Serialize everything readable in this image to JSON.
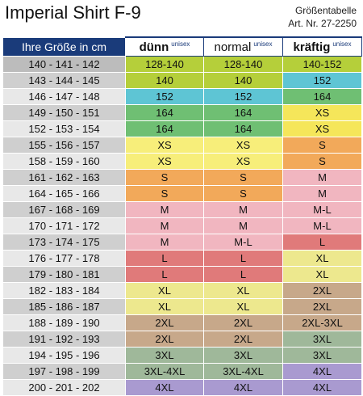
{
  "header": {
    "title": "Imperial Shirt F-9",
    "subtitle_line1": "Größentabelle",
    "subtitle_line2": "Art. Nr. 27-2250"
  },
  "table": {
    "col_size_label": "Ihre Größe in cm",
    "fits": [
      {
        "name": "dünn",
        "tag": "unisex"
      },
      {
        "name": "normal",
        "tag": "unisex"
      },
      {
        "name": "kräftig",
        "tag": "unisex"
      }
    ],
    "rows": [
      {
        "height": "140 - 141 - 142",
        "cells": [
          {
            "v": "128-140",
            "c": "#b5cf3a"
          },
          {
            "v": "128-140",
            "c": "#b5cf3a"
          },
          {
            "v": "140-152",
            "c": "#b5cf3a"
          }
        ]
      },
      {
        "height": "143 - 144 - 145",
        "cells": [
          {
            "v": "140",
            "c": "#b5cf3a"
          },
          {
            "v": "140",
            "c": "#b5cf3a"
          },
          {
            "v": "152",
            "c": "#5ec5d4"
          }
        ]
      },
      {
        "height": "146 - 147 - 148",
        "cells": [
          {
            "v": "152",
            "c": "#5ec5d4"
          },
          {
            "v": "152",
            "c": "#5ec5d4"
          },
          {
            "v": "164",
            "c": "#6fbf73"
          }
        ]
      },
      {
        "height": "149 - 150 - 151",
        "cells": [
          {
            "v": "164",
            "c": "#6fbf73"
          },
          {
            "v": "164",
            "c": "#6fbf73"
          },
          {
            "v": "XS",
            "c": "#f5e65a"
          }
        ]
      },
      {
        "height": "152 - 153 - 154",
        "cells": [
          {
            "v": "164",
            "c": "#6fbf73"
          },
          {
            "v": "164",
            "c": "#6fbf73"
          },
          {
            "v": "XS",
            "c": "#f5e65a"
          }
        ]
      },
      {
        "height": "155 - 156 - 157",
        "cells": [
          {
            "v": "XS",
            "c": "#f7ee7a"
          },
          {
            "v": "XS",
            "c": "#f7ee7a"
          },
          {
            "v": "S",
            "c": "#f2a95a"
          }
        ]
      },
      {
        "height": "158 - 159 - 160",
        "cells": [
          {
            "v": "XS",
            "c": "#f7ee7a"
          },
          {
            "v": "XS",
            "c": "#f7ee7a"
          },
          {
            "v": "S",
            "c": "#f2a95a"
          }
        ]
      },
      {
        "height": "161 - 162 - 163",
        "cells": [
          {
            "v": "S",
            "c": "#f2a95a"
          },
          {
            "v": "S",
            "c": "#f2a95a"
          },
          {
            "v": "M",
            "c": "#f1b6c0"
          }
        ]
      },
      {
        "height": "164 - 165 - 166",
        "cells": [
          {
            "v": "S",
            "c": "#f2a95a"
          },
          {
            "v": "S",
            "c": "#f2a95a"
          },
          {
            "v": "M",
            "c": "#f1b6c0"
          }
        ]
      },
      {
        "height": "167 - 168 - 169",
        "cells": [
          {
            "v": "M",
            "c": "#f1b6c0"
          },
          {
            "v": "M",
            "c": "#f1b6c0"
          },
          {
            "v": "M-L",
            "c": "#f1b6c0"
          }
        ]
      },
      {
        "height": "170 - 171 - 172",
        "cells": [
          {
            "v": "M",
            "c": "#f1b6c0"
          },
          {
            "v": "M",
            "c": "#f1b6c0"
          },
          {
            "v": "M-L",
            "c": "#f1b6c0"
          }
        ]
      },
      {
        "height": "173 - 174 - 175",
        "cells": [
          {
            "v": "M",
            "c": "#f1b6c0"
          },
          {
            "v": "M-L",
            "c": "#f1b6c0"
          },
          {
            "v": "L",
            "c": "#e07a7a"
          }
        ]
      },
      {
        "height": "176 - 177 - 178",
        "cells": [
          {
            "v": "L",
            "c": "#e07a7a"
          },
          {
            "v": "L",
            "c": "#e07a7a"
          },
          {
            "v": "XL",
            "c": "#ede88e"
          }
        ]
      },
      {
        "height": "179 - 180 - 181",
        "cells": [
          {
            "v": "L",
            "c": "#e07a7a"
          },
          {
            "v": "L",
            "c": "#e07a7a"
          },
          {
            "v": "XL",
            "c": "#ede88e"
          }
        ]
      },
      {
        "height": "182 - 183 - 184",
        "cells": [
          {
            "v": "XL",
            "c": "#ede88e"
          },
          {
            "v": "XL",
            "c": "#ede88e"
          },
          {
            "v": "2XL",
            "c": "#c7a88a"
          }
        ]
      },
      {
        "height": "185 - 186 - 187",
        "cells": [
          {
            "v": "XL",
            "c": "#ede88e"
          },
          {
            "v": "XL",
            "c": "#ede88e"
          },
          {
            "v": "2XL",
            "c": "#c7a88a"
          }
        ]
      },
      {
        "height": "188 - 189 - 190",
        "cells": [
          {
            "v": "2XL",
            "c": "#c7a88a"
          },
          {
            "v": "2XL",
            "c": "#c7a88a"
          },
          {
            "v": "2XL-3XL",
            "c": "#c7a88a"
          }
        ]
      },
      {
        "height": "191 - 192 - 193",
        "cells": [
          {
            "v": "2XL",
            "c": "#c7a88a"
          },
          {
            "v": "2XL",
            "c": "#c7a88a"
          },
          {
            "v": "3XL",
            "c": "#9fb89a"
          }
        ]
      },
      {
        "height": "194 - 195 - 196",
        "cells": [
          {
            "v": "3XL",
            "c": "#9fb89a"
          },
          {
            "v": "3XL",
            "c": "#9fb89a"
          },
          {
            "v": "3XL",
            "c": "#9fb89a"
          }
        ]
      },
      {
        "height": "197 - 198 - 199",
        "cells": [
          {
            "v": "3XL-4XL",
            "c": "#9fb89a"
          },
          {
            "v": "3XL-4XL",
            "c": "#9fb89a"
          },
          {
            "v": "4XL",
            "c": "#a99ad0"
          }
        ]
      },
      {
        "height": "200 - 201 - 202",
        "cells": [
          {
            "v": "4XL",
            "c": "#a99ad0"
          },
          {
            "v": "4XL",
            "c": "#a99ad0"
          },
          {
            "v": "4XL",
            "c": "#a99ad0"
          }
        ]
      }
    ]
  }
}
